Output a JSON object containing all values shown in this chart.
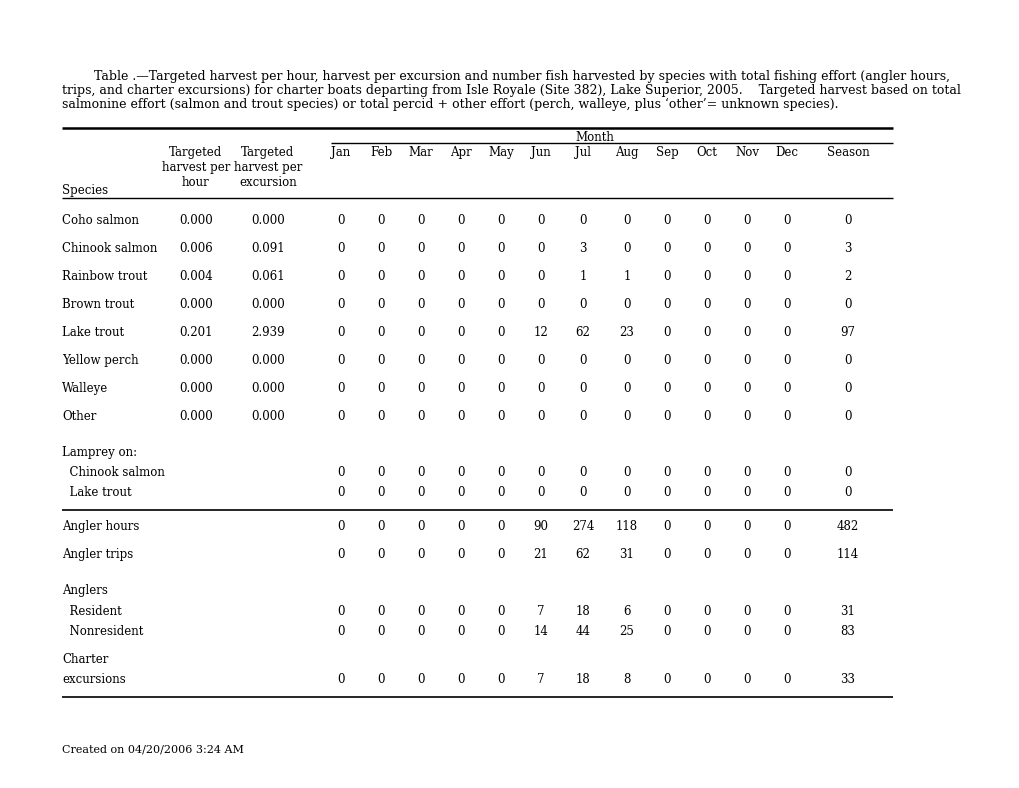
{
  "title_line1": "        Table .—Targeted harvest per hour, harvest per excursion and number fish harvested by species with total fishing effort (angler hours,",
  "title_line2": "trips, and charter excursions) for charter boats departing from Isle Royale (Site 382), Lake Superior, 2005.    Targeted harvest based on total",
  "title_line3": "salmonine effort (salmon and trout species) or total percid + other effort (perch, walleye, plus ‘other’= unknown species).",
  "caption": "Created on 04/20/2006 3:24 AM",
  "month_header": "Month",
  "species_header": "Species",
  "tph_header": "Targeted\nharvest per\nhour",
  "tpe_header": "Targeted\nharvest per\nexcursion",
  "month_cols": [
    "Jan",
    "Feb",
    "Mar",
    "Apr",
    "May",
    "Jun",
    "Jul",
    "Aug",
    "Sep",
    "Oct",
    "Nov",
    "Dec",
    "Season"
  ],
  "rows": [
    {
      "type": "data",
      "label": "Coho salmon",
      "tph": "0.000",
      "tpe": "0.000",
      "vals": [
        "0",
        "0",
        "0",
        "0",
        "0",
        "0",
        "0",
        "0",
        "0",
        "0",
        "0",
        "0",
        "0"
      ]
    },
    {
      "type": "data",
      "label": "Chinook salmon",
      "tph": "0.006",
      "tpe": "0.091",
      "vals": [
        "0",
        "0",
        "0",
        "0",
        "0",
        "0",
        "3",
        "0",
        "0",
        "0",
        "0",
        "0",
        "3"
      ]
    },
    {
      "type": "data",
      "label": "Rainbow trout",
      "tph": "0.004",
      "tpe": "0.061",
      "vals": [
        "0",
        "0",
        "0",
        "0",
        "0",
        "0",
        "1",
        "1",
        "0",
        "0",
        "0",
        "0",
        "2"
      ]
    },
    {
      "type": "data",
      "label": "Brown trout",
      "tph": "0.000",
      "tpe": "0.000",
      "vals": [
        "0",
        "0",
        "0",
        "0",
        "0",
        "0",
        "0",
        "0",
        "0",
        "0",
        "0",
        "0",
        "0"
      ]
    },
    {
      "type": "data",
      "label": "Lake trout",
      "tph": "0.201",
      "tpe": "2.939",
      "vals": [
        "0",
        "0",
        "0",
        "0",
        "0",
        "12",
        "62",
        "23",
        "0",
        "0",
        "0",
        "0",
        "97"
      ]
    },
    {
      "type": "data",
      "label": "Yellow perch",
      "tph": "0.000",
      "tpe": "0.000",
      "vals": [
        "0",
        "0",
        "0",
        "0",
        "0",
        "0",
        "0",
        "0",
        "0",
        "0",
        "0",
        "0",
        "0"
      ]
    },
    {
      "type": "data",
      "label": "Walleye",
      "tph": "0.000",
      "tpe": "0.000",
      "vals": [
        "0",
        "0",
        "0",
        "0",
        "0",
        "0",
        "0",
        "0",
        "0",
        "0",
        "0",
        "0",
        "0"
      ]
    },
    {
      "type": "data",
      "label": "Other",
      "tph": "0.000",
      "tpe": "0.000",
      "vals": [
        "0",
        "0",
        "0",
        "0",
        "0",
        "0",
        "0",
        "0",
        "0",
        "0",
        "0",
        "0",
        "0"
      ]
    },
    {
      "type": "group_header",
      "label": "Lamprey on:"
    },
    {
      "type": "subdata",
      "label": "  Chinook salmon",
      "vals": [
        "0",
        "0",
        "0",
        "0",
        "0",
        "0",
        "0",
        "0",
        "0",
        "0",
        "0",
        "0",
        "0"
      ]
    },
    {
      "type": "subdata_last",
      "label": "  Lake trout",
      "vals": [
        "0",
        "0",
        "0",
        "0",
        "0",
        "0",
        "0",
        "0",
        "0",
        "0",
        "0",
        "0",
        "0"
      ]
    },
    {
      "type": "data_noth",
      "label": "Angler hours",
      "vals": [
        "0",
        "0",
        "0",
        "0",
        "0",
        "90",
        "274",
        "118",
        "0",
        "0",
        "0",
        "0",
        "482"
      ]
    },
    {
      "type": "data_noth",
      "label": "Angler trips",
      "vals": [
        "0",
        "0",
        "0",
        "0",
        "0",
        "21",
        "62",
        "31",
        "0",
        "0",
        "0",
        "0",
        "114"
      ]
    },
    {
      "type": "group_header",
      "label": "Anglers"
    },
    {
      "type": "subdata",
      "label": "  Resident",
      "vals": [
        "0",
        "0",
        "0",
        "0",
        "0",
        "7",
        "18",
        "6",
        "0",
        "0",
        "0",
        "0",
        "31"
      ]
    },
    {
      "type": "subdata",
      "label": "  Nonresident",
      "vals": [
        "0",
        "0",
        "0",
        "0",
        "0",
        "14",
        "44",
        "25",
        "0",
        "0",
        "0",
        "0",
        "83"
      ]
    },
    {
      "type": "group_header",
      "label": "Charter"
    },
    {
      "type": "subdata_last_final",
      "label": "excursions",
      "vals": [
        "0",
        "0",
        "0",
        "0",
        "0",
        "7",
        "18",
        "8",
        "0",
        "0",
        "0",
        "0",
        "33"
      ]
    }
  ],
  "bg_color": "#ffffff",
  "font_size": 8.5,
  "title_font_size": 9.0,
  "caption_font_size": 8.0
}
